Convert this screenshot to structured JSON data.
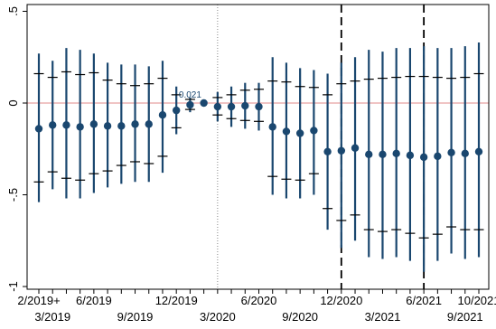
{
  "chart_data": {
    "type": "scatter",
    "title": "",
    "xlabel": "",
    "ylabel": "",
    "ylim": [
      -1,
      0.5
    ],
    "yticks": [
      {
        "value": 0.5,
        "label": ".5"
      },
      {
        "value": 0,
        "label": "0"
      },
      {
        "value": -0.5,
        "label": "-.5"
      },
      {
        "value": -1,
        "label": "-1"
      }
    ],
    "x_categories": [
      "2/2019+",
      "3/2019",
      "4/2019",
      "5/2019",
      "6/2019",
      "7/2019",
      "8/2019",
      "9/2019",
      "10/2019",
      "11/2019",
      "12/2019",
      "1/2020",
      "2/2020",
      "3/2020",
      "4/2020",
      "5/2020",
      "6/2020",
      "7/2020",
      "8/2020",
      "9/2020",
      "10/2020",
      "11/2020",
      "12/2020",
      "1/2021",
      "2/2021",
      "3/2021",
      "4/2021",
      "5/2021",
      "6/2021",
      "7/2021",
      "8/2021",
      "9/2021",
      "10/2021"
    ],
    "xtick_labels": [
      {
        "x": "2/2019+",
        "label": "2/2019+",
        "row": 1
      },
      {
        "x": "3/2019",
        "label": "3/2019",
        "row": 2
      },
      {
        "x": "6/2019",
        "label": "6/2019",
        "row": 1
      },
      {
        "x": "9/2019",
        "label": "9/2019",
        "row": 2
      },
      {
        "x": "12/2019",
        "label": "12/2019",
        "row": 1
      },
      {
        "x": "3/2020",
        "label": "3/2020",
        "row": 2
      },
      {
        "x": "6/2020",
        "label": "6/2020",
        "row": 1
      },
      {
        "x": "9/2020",
        "label": "9/2020",
        "row": 2
      },
      {
        "x": "12/2020",
        "label": "12/2020",
        "row": 1
      },
      {
        "x": "3/2021",
        "label": "3/2021",
        "row": 2
      },
      {
        "x": "6/2021",
        "label": "6/2021",
        "row": 1
      },
      {
        "x": "9/2021",
        "label": "9/2021",
        "row": 2
      },
      {
        "x": "10/2021",
        "label": "10/2021",
        "row": 1
      }
    ],
    "series": [
      {
        "estimate": [
          -0.14,
          -0.12,
          -0.12,
          -0.13,
          -0.115,
          -0.125,
          -0.125,
          -0.115,
          -0.115,
          -0.065,
          -0.04,
          -0.01,
          0.0,
          -0.02,
          -0.02,
          -0.015,
          -0.02,
          -0.13,
          -0.155,
          -0.165,
          -0.15,
          -0.265,
          -0.26,
          -0.245,
          -0.28,
          -0.28,
          -0.275,
          -0.285,
          -0.295,
          -0.29,
          -0.27,
          -0.275,
          -0.265
        ],
        "ci_inner_upper": [
          0.16,
          0.14,
          0.17,
          0.155,
          0.165,
          0.125,
          0.105,
          0.095,
          0.105,
          0.135,
          0.045,
          0.02,
          0.0,
          0.03,
          0.045,
          0.07,
          0.075,
          0.12,
          0.115,
          0.09,
          0.085,
          0.045,
          0.105,
          0.12,
          0.13,
          0.135,
          0.14,
          0.145,
          0.145,
          0.14,
          0.135,
          0.14,
          0.16
        ],
        "ci_inner_lower": [
          -0.43,
          -0.375,
          -0.41,
          -0.42,
          -0.385,
          -0.37,
          -0.34,
          -0.32,
          -0.33,
          -0.29,
          -0.135,
          -0.035,
          0.0,
          -0.065,
          -0.085,
          -0.095,
          -0.1,
          -0.4,
          -0.415,
          -0.42,
          -0.385,
          -0.575,
          -0.64,
          -0.61,
          -0.69,
          -0.7,
          -0.69,
          -0.71,
          -0.735,
          -0.715,
          -0.675,
          -0.69,
          -0.69
        ],
        "ci_outer_upper": [
          0.27,
          0.23,
          0.3,
          0.29,
          0.27,
          0.22,
          0.21,
          0.21,
          0.2,
          0.23,
          0.09,
          0.03,
          0.0,
          0.06,
          0.09,
          0.11,
          0.11,
          0.25,
          0.22,
          0.19,
          0.18,
          0.16,
          0.22,
          0.25,
          0.29,
          0.28,
          0.3,
          0.3,
          0.31,
          0.3,
          0.3,
          0.31,
          0.33
        ],
        "ci_outer_lower": [
          -0.54,
          -0.47,
          -0.52,
          -0.52,
          -0.49,
          -0.46,
          -0.44,
          -0.43,
          -0.43,
          -0.38,
          -0.17,
          -0.05,
          0.0,
          -0.1,
          -0.13,
          -0.14,
          -0.15,
          -0.5,
          -0.52,
          -0.52,
          -0.5,
          -0.69,
          -0.79,
          -0.75,
          -0.84,
          -0.85,
          -0.84,
          -0.86,
          -0.92,
          -0.86,
          -0.82,
          -0.85,
          -0.84
        ]
      }
    ],
    "annotations": [
      {
        "x": "1/2020",
        "y": 0.0,
        "text": "0.021"
      }
    ],
    "reference_lines": [
      {
        "axis": "y",
        "value": 0,
        "style": "solid",
        "color": "#e8a0a0"
      },
      {
        "axis": "x",
        "value": "3/2020",
        "style": "dotted",
        "color": "#888888"
      },
      {
        "axis": "x",
        "value": "12/2020",
        "style": "dashed",
        "color": "#000000"
      },
      {
        "axis": "x",
        "value": "6/2021",
        "style": "dashed",
        "color": "#000000"
      }
    ],
    "grid": false,
    "legend": "none",
    "colors": {
      "marker": "#1a476f",
      "ci": "#1a476f",
      "annotation": "#1a476f"
    }
  }
}
